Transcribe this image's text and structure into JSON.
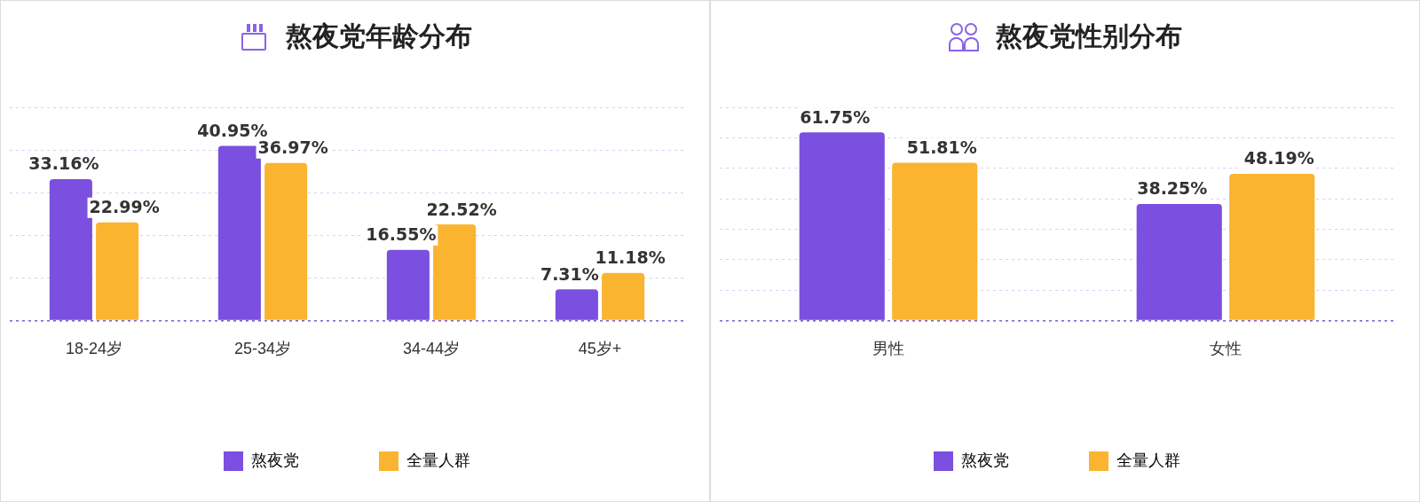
{
  "chart_data": [
    {
      "type": "bar",
      "title": "熬夜党年龄分布",
      "categories": [
        "18-24岁",
        "25-34岁",
        "34-44岁",
        "45岁+"
      ],
      "series": [
        {
          "name": "熬夜党",
          "color": "#7b4fe0",
          "values": [
            33.16,
            40.95,
            16.55,
            7.31
          ],
          "value_labels": [
            "33.16%",
            "40.95%",
            "16.55%",
            "7.31%"
          ]
        },
        {
          "name": "全量人群",
          "color": "#fbb430",
          "values": [
            22.99,
            36.97,
            22.52,
            11.18
          ],
          "value_labels": [
            "22.99%",
            "36.97%",
            "22.52%",
            "11.18%"
          ]
        }
      ],
      "ylim": [
        0,
        50
      ],
      "yticks": [
        {
          "value": 0,
          "label": null
        },
        {
          "value": 10,
          "label": null
        },
        {
          "value": 20,
          "label": null
        },
        {
          "value": 30,
          "label": null
        },
        {
          "value": 40,
          "label": null
        },
        {
          "value": 50,
          "label": null
        }
      ],
      "grid": "y",
      "tick_labels": "x",
      "legend": "bottom"
    },
    {
      "type": "bar",
      "title": "熬夜党性别分布",
      "categories": [
        "男性",
        "女性"
      ],
      "series": [
        {
          "name": "熬夜党",
          "color": "#7b4fe0",
          "values": [
            61.75,
            38.25
          ],
          "value_labels": [
            "61.75%",
            "38.25%"
          ]
        },
        {
          "name": "全量人群",
          "color": "#fbb430",
          "values": [
            51.81,
            48.19
          ],
          "value_labels": [
            "51.81%",
            "48.19%"
          ]
        }
      ],
      "ylim": [
        0,
        70
      ],
      "yticks": [
        {
          "value": 0,
          "label": null
        },
        {
          "value": 10,
          "label": null
        },
        {
          "value": 20,
          "label": null
        },
        {
          "value": 30,
          "label": null
        },
        {
          "value": 40,
          "label": null
        },
        {
          "value": 50,
          "label": null
        },
        {
          "value": 60,
          "label": null
        },
        {
          "value": 70,
          "label": null
        }
      ],
      "grid": "y",
      "tick_labels": "x",
      "legend": "bottom"
    }
  ]
}
